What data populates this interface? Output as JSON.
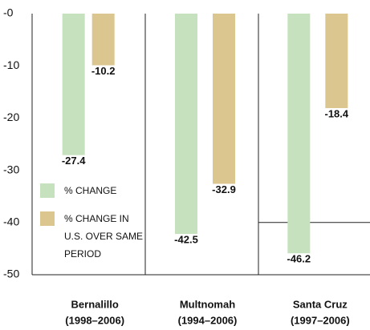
{
  "chart_data": {
    "type": "bar",
    "categories": [
      [
        "Bernalillo",
        "(1998–2006)"
      ],
      [
        "Multnomah",
        "(1994–2006)"
      ],
      [
        "Santa Cruz",
        "(1997–2006)"
      ]
    ],
    "series": [
      {
        "name": "% CHANGE",
        "color": "#c6e1bd",
        "values": [
          -27.4,
          -42.5,
          -46.2
        ]
      },
      {
        "name": "% CHANGE IN U.S. OVER SAME PERIOD",
        "color": "#dbc68f",
        "values": [
          -10.2,
          -32.9,
          -18.4
        ]
      }
    ],
    "ylim": [
      0,
      -50
    ],
    "yticks": [
      {
        "value": 0,
        "label": "-0"
      },
      -10,
      -20,
      -30,
      -40,
      -50
    ],
    "grid": false
  }
}
